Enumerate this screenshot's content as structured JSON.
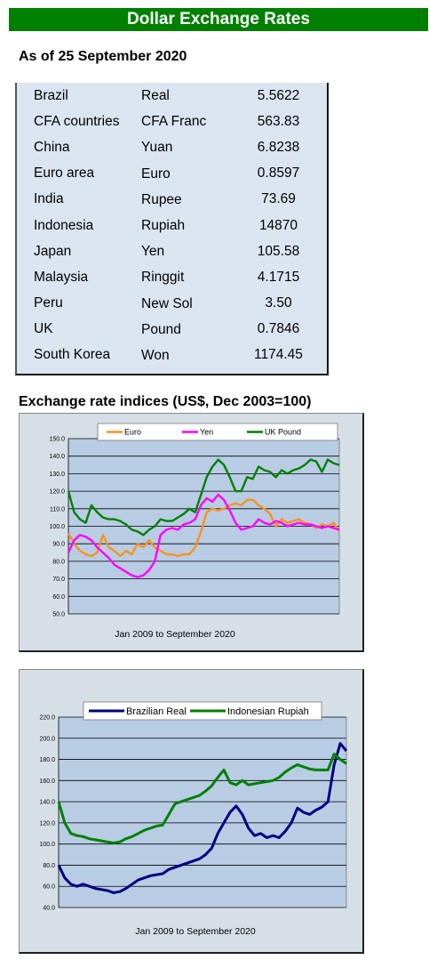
{
  "header": {
    "title": "Dollar Exchange Rates"
  },
  "as_of": "As of 25 September 2020",
  "rates_table": {
    "rows": [
      {
        "country": "Brazil",
        "currency": "Real",
        "rate": "5.5622"
      },
      {
        "country": "CFA countries",
        "currency": "CFA Franc",
        "rate": "563.83"
      },
      {
        "country": "China",
        "currency": "Yuan",
        "rate": "6.8238"
      },
      {
        "country": "Euro area",
        "currency": "Euro",
        "rate": "0.8597"
      },
      {
        "country": "India",
        "currency": "Rupee",
        "rate": "73.69"
      },
      {
        "country": "Indonesia",
        "currency": "Rupiah",
        "rate": "14870"
      },
      {
        "country": "Japan",
        "currency": "Yen",
        "rate": "105.58"
      },
      {
        "country": "Malaysia",
        "currency": "Ringgit",
        "rate": "4.1715"
      },
      {
        "country": "Peru",
        "currency": "New Sol",
        "rate": "3.50"
      },
      {
        "country": "UK",
        "currency": "Pound",
        "rate": "0.7846"
      },
      {
        "country": "South Korea",
        "currency": "Won",
        "rate": "1174.45"
      }
    ]
  },
  "indices_title": "Exchange rate indices (US$, Dec 2003=100)",
  "chart_data": [
    {
      "type": "line",
      "title": "",
      "xlabel": "Jan 2009  to September 2020",
      "ylabel": "",
      "ylim": [
        50,
        150
      ],
      "yticks": [
        "150.0",
        "140.0",
        "130.0",
        "120.0",
        "110.0",
        "100.0",
        "90.0",
        "80.0",
        "70.0",
        "60.0",
        "50.0"
      ],
      "grid": true,
      "legend": "top",
      "plot_bg": "#b8cce4",
      "x": [
        2009.0,
        2009.25,
        2009.5,
        2009.75,
        2010.0,
        2010.25,
        2010.5,
        2010.75,
        2011.0,
        2011.25,
        2011.5,
        2011.75,
        2012.0,
        2012.25,
        2012.5,
        2012.75,
        2013.0,
        2013.25,
        2013.5,
        2013.75,
        2014.0,
        2014.25,
        2014.5,
        2014.75,
        2015.0,
        2015.25,
        2015.5,
        2015.75,
        2016.0,
        2016.25,
        2016.5,
        2016.75,
        2017.0,
        2017.25,
        2017.5,
        2017.75,
        2018.0,
        2018.25,
        2018.5,
        2018.75,
        2019.0,
        2019.25,
        2019.5,
        2019.75,
        2020.0,
        2020.25,
        2020.5,
        2020.75
      ],
      "series": [
        {
          "name": "Euro",
          "color": "#f7931e",
          "values": [
            96,
            90,
            86,
            84,
            83,
            85,
            95,
            88,
            86,
            83,
            86,
            84,
            90,
            88,
            92,
            88,
            86,
            84,
            84,
            83,
            84,
            84,
            88,
            97,
            108,
            110,
            109,
            110,
            112,
            113,
            112,
            115,
            115,
            112,
            110,
            107,
            100,
            104,
            102,
            103,
            104,
            102,
            101,
            99,
            101,
            100,
            102,
            97
          ]
        },
        {
          "name": "Yen",
          "color": "#ff00ff",
          "values": [
            85,
            92,
            95,
            94,
            92,
            88,
            85,
            82,
            78,
            76,
            74,
            72,
            71,
            72,
            75,
            80,
            95,
            98,
            99,
            98,
            101,
            102,
            104,
            112,
            116,
            114,
            118,
            115,
            109,
            102,
            98,
            99,
            100,
            104,
            102,
            101,
            103,
            102,
            100,
            101,
            102,
            101,
            101,
            100,
            99,
            100,
            99,
            98
          ]
        },
        {
          "name": "UK Pound",
          "color": "#008000",
          "values": [
            120,
            108,
            104,
            102,
            112,
            108,
            105,
            104,
            104,
            103,
            101,
            98,
            97,
            95,
            98,
            100,
            104,
            103,
            103,
            105,
            107,
            110,
            108,
            118,
            128,
            134,
            138,
            135,
            128,
            120,
            120,
            128,
            127,
            134,
            132,
            131,
            128,
            132,
            130,
            132,
            133,
            135,
            138,
            137,
            131,
            138,
            136,
            135
          ]
        }
      ]
    },
    {
      "type": "line",
      "title": "",
      "xlabel": "Jan 2009  to September 2020",
      "ylabel": "",
      "ylim": [
        40,
        220
      ],
      "yticks": [
        "220.0",
        "200.0",
        "180.0",
        "160.0",
        "140.0",
        "120.0",
        "100.0",
        "80.0",
        "60.0",
        "40.0"
      ],
      "grid": true,
      "legend": "top",
      "plot_bg": "#b8cce4",
      "x": [
        2009.0,
        2009.25,
        2009.5,
        2009.75,
        2010.0,
        2010.25,
        2010.5,
        2010.75,
        2011.0,
        2011.25,
        2011.5,
        2011.75,
        2012.0,
        2012.25,
        2012.5,
        2012.75,
        2013.0,
        2013.25,
        2013.5,
        2013.75,
        2014.0,
        2014.25,
        2014.5,
        2014.75,
        2015.0,
        2015.25,
        2015.5,
        2015.75,
        2016.0,
        2016.25,
        2016.5,
        2016.75,
        2017.0,
        2017.25,
        2017.5,
        2017.75,
        2018.0,
        2018.25,
        2018.5,
        2018.75,
        2019.0,
        2019.25,
        2019.5,
        2019.75,
        2020.0,
        2020.25,
        2020.5,
        2020.75
      ],
      "series": [
        {
          "name": "Brazilian Real",
          "color": "#000080",
          "values": [
            80,
            68,
            62,
            60,
            62,
            60,
            58,
            57,
            56,
            54,
            55,
            58,
            62,
            66,
            68,
            70,
            71,
            72,
            76,
            78,
            80,
            82,
            84,
            86,
            90,
            96,
            110,
            120,
            130,
            136,
            128,
            115,
            108,
            110,
            106,
            108,
            106,
            112,
            120,
            134,
            130,
            128,
            132,
            135,
            140,
            175,
            195,
            188
          ]
        },
        {
          "name": "Indonesian Rupiah",
          "color": "#008000",
          "values": [
            140,
            120,
            110,
            108,
            107,
            105,
            104,
            103,
            102,
            101,
            102,
            105,
            107,
            110,
            113,
            115,
            117,
            118,
            128,
            138,
            140,
            142,
            144,
            146,
            150,
            155,
            163,
            170,
            158,
            156,
            160,
            156,
            157,
            158,
            159,
            160,
            163,
            168,
            172,
            175,
            173,
            171,
            170,
            170,
            170,
            185,
            180,
            176
          ]
        }
      ]
    }
  ]
}
